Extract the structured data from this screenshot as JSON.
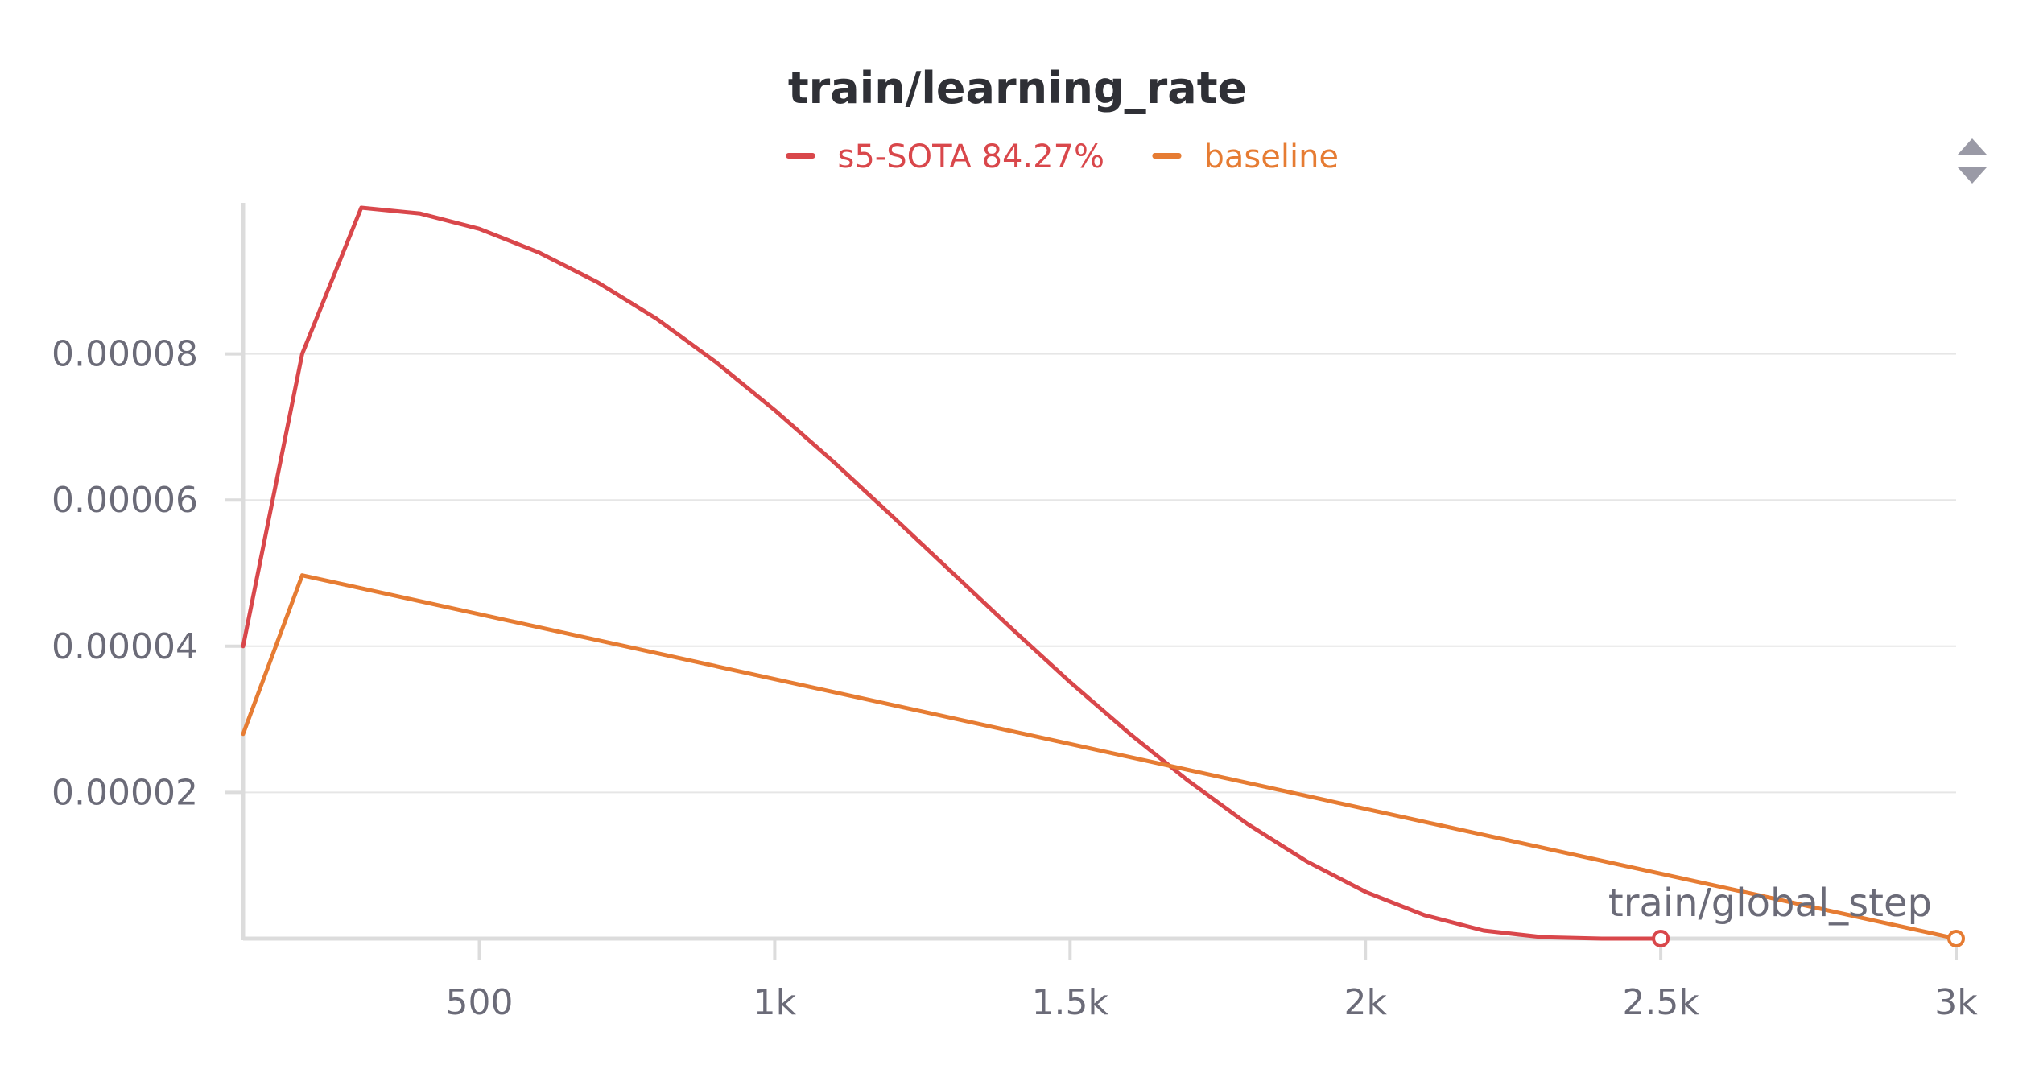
{
  "chart_data": {
    "type": "line",
    "title": "train/learning_rate",
    "xlabel": "train/global_step",
    "ylabel": "",
    "xlim": [
      100,
      3000
    ],
    "ylim": [
      0,
      0.0001
    ],
    "x_ticks": [
      {
        "value": 500,
        "label": "500"
      },
      {
        "value": 1000,
        "label": "1k"
      },
      {
        "value": 1500,
        "label": "1.5k"
      },
      {
        "value": 2000,
        "label": "2k"
      },
      {
        "value": 2500,
        "label": "2.5k"
      },
      {
        "value": 3000,
        "label": "3k"
      }
    ],
    "y_ticks": [
      {
        "value": 2e-05,
        "label": "0.00002"
      },
      {
        "value": 4e-05,
        "label": "0.00004"
      },
      {
        "value": 6e-05,
        "label": "0.00006"
      },
      {
        "value": 8e-05,
        "label": "0.00008"
      }
    ],
    "grid": true,
    "legend_position": "top-center",
    "series": [
      {
        "name": "s5-SOTA 84.27%",
        "color": "#d9474b",
        "x": [
          100,
          200,
          300,
          400,
          500,
          600,
          700,
          800,
          900,
          1000,
          1100,
          1200,
          1300,
          1400,
          1500,
          1600,
          1700,
          1800,
          1900,
          2000,
          2100,
          2200,
          2300,
          2400,
          2500
        ],
        "y": [
          4e-05,
          8e-05,
          0.0001,
          9.92e-05,
          9.71e-05,
          9.39e-05,
          8.98e-05,
          8.48e-05,
          7.89e-05,
          7.23e-05,
          6.52e-05,
          5.77e-05,
          5.01e-05,
          4.25e-05,
          3.51e-05,
          2.81e-05,
          2.16e-05,
          1.57e-05,
          1.06e-05,
          6.4e-06,
          3.2e-06,
          1.1e-06,
          2e-07,
          0.0,
          0.0
        ]
      },
      {
        "name": "baseline",
        "color": "#e67c33",
        "x": [
          100,
          200,
          3000
        ],
        "y": [
          2.8e-05,
          4.97e-05,
          0.0
        ]
      }
    ]
  },
  "controls": {
    "scroll_icon": "up-down-arrows-icon",
    "scroll_icon_color": "#9a9aa6"
  }
}
